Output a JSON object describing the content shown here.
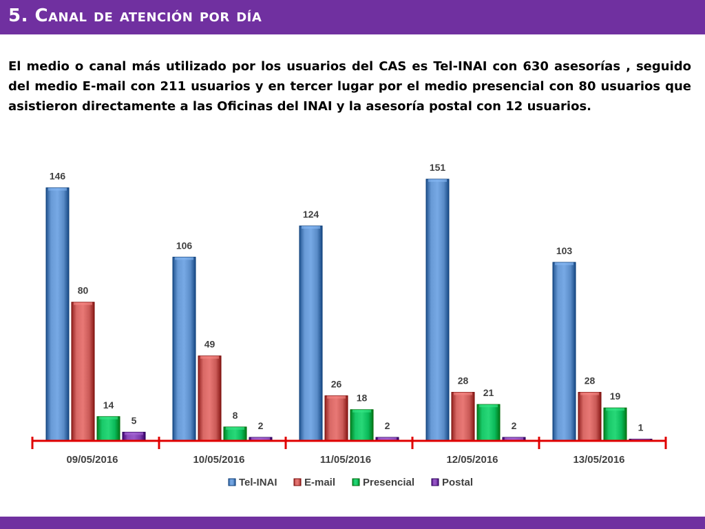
{
  "header": {
    "title": "5. Canal de atención por día"
  },
  "body": {
    "paragraph": "El medio o canal más utilizado por los usuarios del CAS es Tel-INAI con 630 asesorías , seguido del medio E-mail con 211 usuarios y en tercer lugar por el medio presencial con 80 usuarios que  asistieron directamente a las Oficinas del INAI y la asesoría postal con 12 usuarios."
  },
  "colors": {
    "header_bg": "#7030a0",
    "tel_inai": "#4f81bd",
    "email": "#c0504d",
    "presencial": "#00b050",
    "postal": "#7030a0",
    "axis": "#e00000"
  },
  "chart_data": {
    "type": "bar",
    "categories": [
      "09/05/2016",
      "10/05/2016",
      "11/05/2016",
      "12/05/2016",
      "13/05/2016"
    ],
    "series": [
      {
        "name": "Tel-INAI",
        "values": [
          146,
          106,
          124,
          151,
          103
        ]
      },
      {
        "name": "E-mail",
        "values": [
          80,
          49,
          26,
          28,
          28
        ]
      },
      {
        "name": "Presencial",
        "values": [
          14,
          8,
          18,
          21,
          19
        ]
      },
      {
        "name": "Postal",
        "values": [
          5,
          2,
          2,
          2,
          1
        ]
      }
    ],
    "title": "",
    "xlabel": "",
    "ylabel": "",
    "ylim": [
      0,
      160
    ],
    "grid": false,
    "data_labels": true,
    "legend": "bottom"
  }
}
